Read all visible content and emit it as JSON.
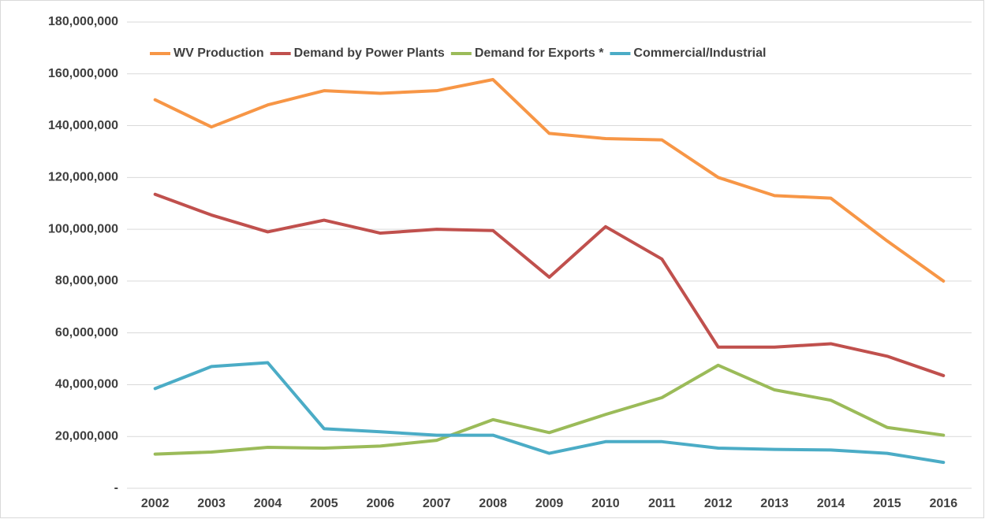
{
  "chart_data": {
    "type": "line",
    "categories": [
      "2002",
      "2003",
      "2004",
      "2005",
      "2006",
      "2007",
      "2008",
      "2009",
      "2010",
      "2011",
      "2012",
      "2013",
      "2014",
      "2015",
      "2016"
    ],
    "series": [
      {
        "name": "WV Production",
        "color": "#f79646",
        "values": [
          150000000,
          139500000,
          148000000,
          153500000,
          152500000,
          153500000,
          157800000,
          137000000,
          135000000,
          134500000,
          120000000,
          113000000,
          112000000,
          95500000,
          80000000
        ]
      },
      {
        "name": "Demand by Power Plants",
        "color": "#c0504d",
        "values": [
          113500000,
          105500000,
          99000000,
          103500000,
          98500000,
          100000000,
          99500000,
          81500000,
          101000000,
          88500000,
          54500000,
          54500000,
          55800000,
          51000000,
          43500000
        ]
      },
      {
        "name": "Demand for Exports *",
        "color": "#9bbb59",
        "values": [
          13200000,
          14000000,
          15800000,
          15500000,
          16300000,
          18500000,
          26500000,
          21500000,
          28500000,
          35000000,
          47500000,
          38000000,
          34000000,
          23500000,
          20500000
        ]
      },
      {
        "name": "Commercial/Industrial",
        "color": "#4bacc6",
        "values": [
          38500000,
          47000000,
          48500000,
          23000000,
          21800000,
          20500000,
          20500000,
          13500000,
          18000000,
          18000000,
          15500000,
          15000000,
          14800000,
          13500000,
          10000000
        ]
      }
    ],
    "ylim": [
      0,
      180000000
    ],
    "yticks": [
      {
        "value": 0,
        "label": "-"
      },
      {
        "value": 20000000,
        "label": "20,000,000"
      },
      {
        "value": 40000000,
        "label": "40,000,000"
      },
      {
        "value": 60000000,
        "label": "60,000,000"
      },
      {
        "value": 80000000,
        "label": "80,000,000"
      },
      {
        "value": 100000000,
        "label": "100,000,000"
      },
      {
        "value": 120000000,
        "label": "120,000,000"
      },
      {
        "value": 140000000,
        "label": "140,000,000"
      },
      {
        "value": 160000000,
        "label": "160,000,000"
      },
      {
        "value": 180000000,
        "label": "180,000,000"
      }
    ],
    "grid": true,
    "legend": "top"
  }
}
